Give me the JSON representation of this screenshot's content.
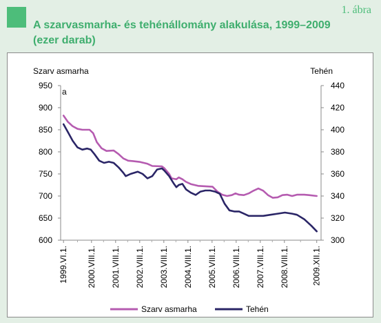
{
  "header": {
    "figure_number": "1. ábra",
    "title": "A szarvasmarha- és tehénállomány alakulása, 1999–2009 (ezer darab)"
  },
  "colors": {
    "accent": "#4dbd7a",
    "szarvasmarha": "#b55bb0",
    "tehen": "#2a2566"
  },
  "chart_data": {
    "type": "line",
    "left_axis_title": "Szarv asmarha",
    "right_axis_title": "Tehén",
    "corner_letter": "a",
    "y_left": {
      "min": 600,
      "max": 950,
      "ticks": [
        950,
        900,
        850,
        800,
        750,
        700,
        650,
        600
      ]
    },
    "y_right": {
      "min": 300,
      "max": 440,
      "ticks": [
        440,
        420,
        400,
        380,
        360,
        340,
        320,
        300
      ]
    },
    "x_tick_labels": [
      "1999.VI.1.",
      "2000.VIII.1.",
      "2001.VIII.1.",
      "2002.VIII.1.",
      "2003.VIII.1.",
      "2004.VIII.1.",
      "2005.VIII.1.",
      "2006.VIII.1.",
      "2007.VIII.1.",
      "2008.VIII.1.",
      "2009.XII.1."
    ],
    "x_tick_positions": [
      1999.42,
      2000.58,
      2001.58,
      2002.58,
      2003.58,
      2004.58,
      2005.58,
      2006.58,
      2007.58,
      2008.58,
      2009.92
    ],
    "x_range": [
      1999.3,
      2010.1
    ],
    "series": [
      {
        "name": "Szarv asmarha",
        "axis": "left",
        "points": [
          [
            1999.42,
            882
          ],
          [
            1999.6,
            868
          ],
          [
            1999.8,
            858
          ],
          [
            2000.0,
            852
          ],
          [
            2000.2,
            850
          ],
          [
            2000.5,
            850
          ],
          [
            2000.65,
            842
          ],
          [
            2000.8,
            822
          ],
          [
            2001.0,
            808
          ],
          [
            2001.2,
            802
          ],
          [
            2001.5,
            803
          ],
          [
            2001.7,
            795
          ],
          [
            2001.9,
            785
          ],
          [
            2002.1,
            780
          ],
          [
            2002.3,
            779
          ],
          [
            2002.6,
            777
          ],
          [
            2002.9,
            773
          ],
          [
            2003.1,
            768
          ],
          [
            2003.5,
            767
          ],
          [
            2003.6,
            763
          ],
          [
            2003.8,
            750
          ],
          [
            2003.9,
            740
          ],
          [
            2004.1,
            738
          ],
          [
            2004.2,
            742
          ],
          [
            2004.35,
            738
          ],
          [
            2004.5,
            732
          ],
          [
            2004.7,
            727
          ],
          [
            2005.0,
            723
          ],
          [
            2005.3,
            722
          ],
          [
            2005.6,
            721
          ],
          [
            2005.8,
            710
          ],
          [
            2006.0,
            703
          ],
          [
            2006.2,
            700
          ],
          [
            2006.4,
            702
          ],
          [
            2006.55,
            706
          ],
          [
            2006.7,
            703
          ],
          [
            2006.9,
            702
          ],
          [
            2007.1,
            706
          ],
          [
            2007.3,
            712
          ],
          [
            2007.5,
            717
          ],
          [
            2007.7,
            712
          ],
          [
            2007.9,
            702
          ],
          [
            2008.1,
            696
          ],
          [
            2008.3,
            697
          ],
          [
            2008.5,
            702
          ],
          [
            2008.7,
            703
          ],
          [
            2008.9,
            700
          ],
          [
            2009.1,
            703
          ],
          [
            2009.4,
            703
          ],
          [
            2009.6,
            702
          ],
          [
            2009.92,
            700
          ]
        ]
      },
      {
        "name": "Tehén",
        "axis": "right",
        "points": [
          [
            1999.42,
            405
          ],
          [
            1999.6,
            398
          ],
          [
            1999.8,
            390
          ],
          [
            2000.0,
            384
          ],
          [
            2000.2,
            382
          ],
          [
            2000.4,
            383
          ],
          [
            2000.55,
            382
          ],
          [
            2000.7,
            378
          ],
          [
            2000.9,
            372
          ],
          [
            2001.1,
            370
          ],
          [
            2001.3,
            371
          ],
          [
            2001.5,
            370
          ],
          [
            2001.7,
            366
          ],
          [
            2001.9,
            361
          ],
          [
            2002.0,
            358
          ],
          [
            2002.2,
            360
          ],
          [
            2002.5,
            362
          ],
          [
            2002.7,
            360
          ],
          [
            2002.9,
            356
          ],
          [
            2003.1,
            358
          ],
          [
            2003.3,
            364
          ],
          [
            2003.5,
            365
          ],
          [
            2003.6,
            363
          ],
          [
            2003.8,
            358
          ],
          [
            2004.0,
            351
          ],
          [
            2004.1,
            348
          ],
          [
            2004.2,
            350
          ],
          [
            2004.35,
            351
          ],
          [
            2004.5,
            346
          ],
          [
            2004.7,
            343
          ],
          [
            2004.9,
            341
          ],
          [
            2005.1,
            344
          ],
          [
            2005.3,
            345
          ],
          [
            2005.5,
            345
          ],
          [
            2005.7,
            344
          ],
          [
            2005.9,
            342
          ],
          [
            2006.1,
            333
          ],
          [
            2006.3,
            327
          ],
          [
            2006.5,
            326
          ],
          [
            2006.7,
            326
          ],
          [
            2006.9,
            324
          ],
          [
            2007.1,
            322
          ],
          [
            2007.4,
            322
          ],
          [
            2007.7,
            322
          ],
          [
            2008.0,
            323
          ],
          [
            2008.3,
            324
          ],
          [
            2008.6,
            325
          ],
          [
            2008.9,
            324
          ],
          [
            2009.1,
            323
          ],
          [
            2009.4,
            319
          ],
          [
            2009.7,
            313
          ],
          [
            2009.92,
            308
          ]
        ]
      }
    ],
    "legend": {
      "position": "bottom",
      "items": [
        "Szarv asmarha",
        "Tehén"
      ]
    },
    "grid": false
  }
}
